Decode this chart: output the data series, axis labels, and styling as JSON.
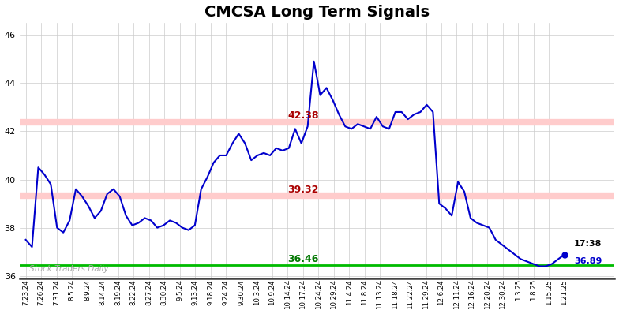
{
  "title": "CMCSA Long Term Signals",
  "title_fontsize": 14,
  "title_fontweight": "bold",
  "background_color": "#ffffff",
  "line_color": "#0000cc",
  "line_width": 1.5,
  "ylim": [
    35.9,
    46.5
  ],
  "yticks": [
    36,
    38,
    40,
    42,
    44,
    46
  ],
  "hline_upper": 42.38,
  "hline_middle": 39.32,
  "hline_lower": 36.46,
  "hline_upper_color": "#ffcccc",
  "hline_middle_color": "#ffcccc",
  "hline_lower_color": "#00bb00",
  "hline_upper_lw": 6,
  "hline_middle_lw": 6,
  "hline_lower_lw": 2,
  "label_upper": "42.38",
  "label_middle": "39.32",
  "label_lower": "36.46",
  "label_upper_color": "#aa0000",
  "label_middle_color": "#aa0000",
  "label_lower_color": "#007700",
  "label_fontsize": 9,
  "watermark": "Stock Traders Daily",
  "watermark_color": "#aaaaaa",
  "last_time": "17:38",
  "last_price": 36.89,
  "dot_color": "#0000cc",
  "x_labels": [
    "7.23.24",
    "7.26.24",
    "7.31.24",
    "8.5.24",
    "8.9.24",
    "8.14.24",
    "8.19.24",
    "8.22.24",
    "8.27.24",
    "8.30.24",
    "9.5.24",
    "9.13.24",
    "9.18.24",
    "9.24.24",
    "9.30.24",
    "10.3.24",
    "10.9.24",
    "10.14.24",
    "10.17.24",
    "10.24.24",
    "10.29.24",
    "11.4.24",
    "11.8.24",
    "11.13.24",
    "11.18.24",
    "11.22.24",
    "11.29.24",
    "12.6.24",
    "12.11.24",
    "12.16.24",
    "12.20.24",
    "12.30.24",
    "1.3.25",
    "1.8.25",
    "1.15.25",
    "1.21.25"
  ],
  "prices": [
    37.5,
    37.2,
    40.5,
    40.2,
    39.8,
    38.0,
    37.8,
    38.3,
    39.6,
    39.3,
    38.9,
    38.4,
    38.7,
    39.4,
    39.6,
    39.3,
    38.5,
    38.1,
    38.2,
    38.4,
    38.3,
    38.0,
    38.1,
    38.3,
    38.2,
    38.0,
    37.9,
    38.1,
    39.6,
    40.1,
    40.7,
    41.0,
    41.0,
    41.5,
    41.9,
    41.5,
    40.8,
    41.0,
    41.1,
    41.0,
    41.3,
    41.2,
    41.3,
    42.1,
    41.5,
    42.2,
    44.9,
    43.5,
    43.8,
    43.3,
    42.7,
    42.2,
    42.1,
    42.3,
    42.2,
    42.1,
    42.6,
    42.2,
    42.1,
    42.8,
    42.8,
    42.5,
    42.7,
    42.8,
    43.1,
    42.8,
    39.0,
    38.8,
    38.5,
    39.9,
    39.5,
    38.4,
    38.2,
    38.1,
    38.0,
    37.5,
    37.3,
    37.1,
    36.9,
    36.7,
    36.6,
    36.5,
    36.4,
    36.4,
    36.5,
    36.7,
    36.89
  ]
}
